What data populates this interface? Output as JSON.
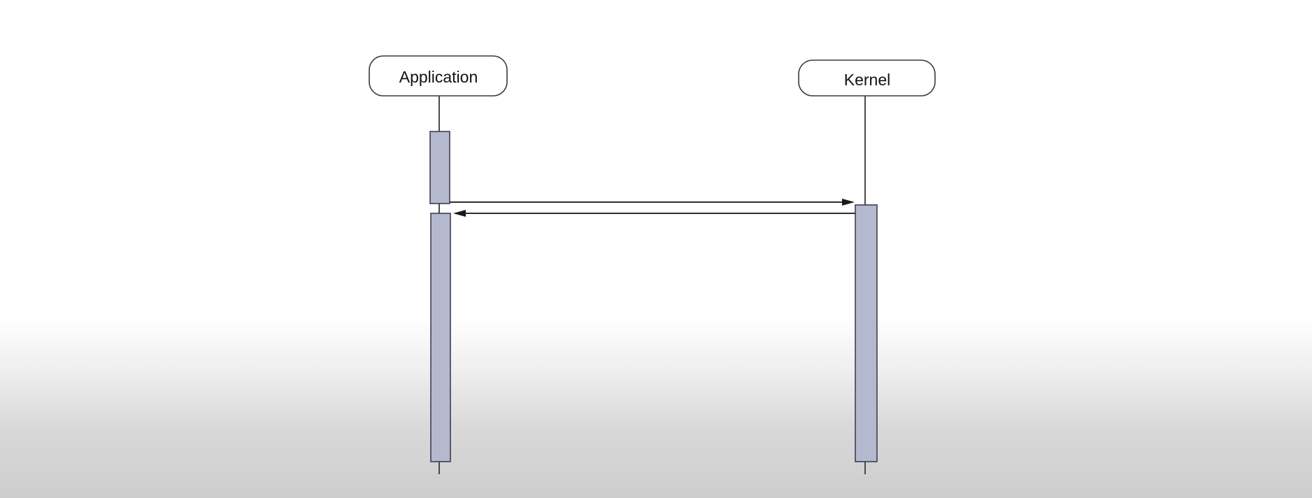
{
  "diagram": {
    "type": "sequence-diagram",
    "participants": [
      {
        "id": "application",
        "label": "Application"
      },
      {
        "id": "kernel",
        "label": "Kernel"
      }
    ],
    "messages": [
      {
        "from": "application",
        "to": "kernel",
        "label": ""
      },
      {
        "from": "kernel",
        "to": "application",
        "label": ""
      }
    ],
    "colors": {
      "activation_fill": "#b4b9cf",
      "activation_stroke": "#3d3f4f",
      "line": "#2e2e2e"
    }
  }
}
